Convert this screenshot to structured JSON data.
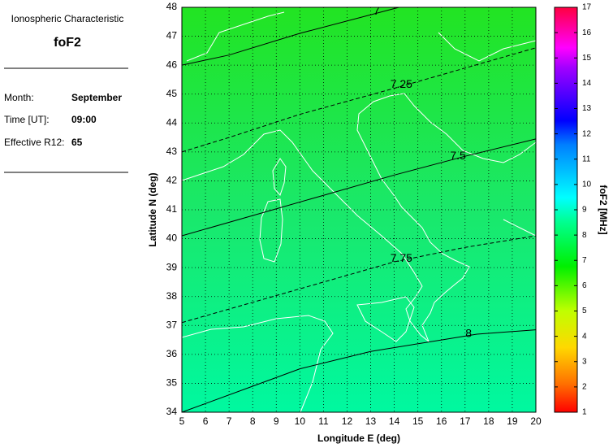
{
  "panel": {
    "heading": "Ionospheric Characteristic",
    "parameter": "foF2",
    "fields": [
      {
        "label": "Month:",
        "value": "September"
      },
      {
        "label": "Time [UT]:",
        "value": "09:00"
      },
      {
        "label": "Effective R12:",
        "value": 65
      }
    ]
  },
  "chart_data": {
    "type": "contour",
    "xlabel": "Longitude E (deg)",
    "ylabel": "Latitude N (deg)",
    "xlim": [
      5,
      20
    ],
    "xticks": [
      5,
      6,
      7,
      8,
      9,
      10,
      11,
      12,
      13,
      14,
      15,
      16,
      17,
      18,
      19,
      20
    ],
    "ylim": [
      34,
      48
    ],
    "yticks": [
      34,
      35,
      36,
      37,
      38,
      39,
      40,
      41,
      42,
      43,
      44,
      45,
      46,
      47,
      48
    ],
    "grid": true,
    "contours": [
      {
        "level": 7,
        "style": "solid",
        "lon": [
          5,
          7,
          10,
          14.2
        ],
        "lat": [
          46.0,
          46.35,
          47.1,
          48
        ]
      },
      {
        "level": 7.25,
        "style": "dashed",
        "lon": [
          5,
          7,
          10,
          14,
          17,
          20
        ],
        "lat": [
          43.0,
          43.5,
          44.3,
          45.2,
          45.9,
          46.6
        ]
      },
      {
        "level": 7.5,
        "style": "solid",
        "lon": [
          5,
          8,
          11,
          14,
          17,
          20
        ],
        "lat": [
          40.1,
          40.8,
          41.5,
          42.2,
          42.85,
          43.45
        ]
      },
      {
        "level": 7.75,
        "style": "dashed",
        "lon": [
          5,
          8,
          11,
          14,
          17,
          20
        ],
        "lat": [
          37.1,
          37.8,
          38.5,
          39.2,
          39.7,
          40.1
        ]
      },
      {
        "level": 8,
        "style": "solid",
        "lon": [
          5,
          8,
          10,
          13,
          16,
          17.5,
          20
        ],
        "lat": [
          34,
          34.9,
          35.5,
          36.1,
          36.5,
          36.7,
          36.85
        ]
      }
    ],
    "colorbar": {
      "label": "foF2 [MHz]",
      "lim": [
        1,
        17
      ],
      "ticks": [
        1,
        2,
        3,
        4,
        5,
        6,
        7,
        8,
        9,
        10,
        11,
        12,
        13,
        14,
        15,
        16,
        17
      ]
    }
  }
}
